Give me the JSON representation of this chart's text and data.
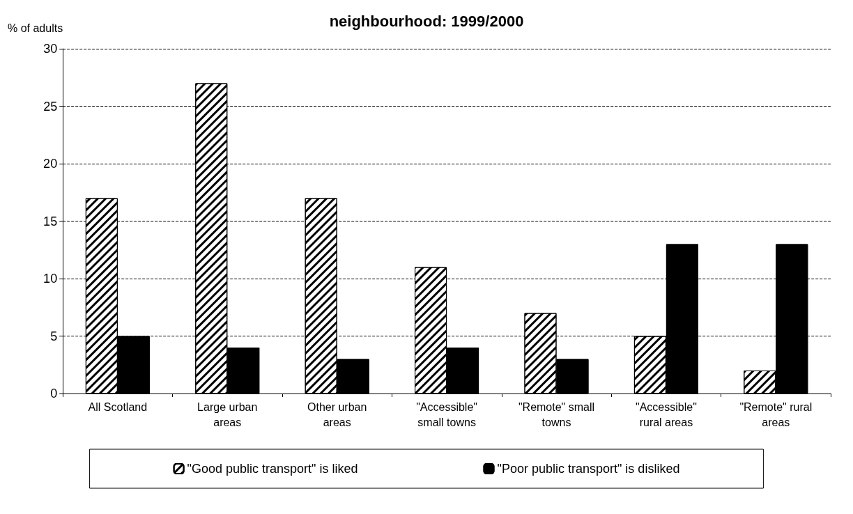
{
  "chart_data": {
    "type": "bar",
    "title": "neighbourhood: 1999/2000",
    "ylabel": "% of adults",
    "categories": [
      "All Scotland",
      "Large urban\nareas",
      "Other urban\nareas",
      "\"Accessible\"\nsmall towns",
      "\"Remote\" small\ntowns",
      "\"Accessible\"\nrural areas",
      "\"Remote\" rural\nareas"
    ],
    "series": [
      {
        "name": "\"Good public transport\" is liked",
        "color": "#ffffff",
        "values": [
          17,
          27,
          17,
          11,
          7,
          5,
          2
        ]
      },
      {
        "name": "\"Poor public transport\" is disliked",
        "color": "#000000",
        "values": [
          5,
          4,
          3,
          4,
          3,
          13,
          13
        ]
      }
    ],
    "ylim": [
      0,
      30
    ],
    "yticks": [
      0,
      5,
      10,
      15,
      20,
      25,
      30
    ],
    "grid": "y",
    "legend": "bottom"
  }
}
